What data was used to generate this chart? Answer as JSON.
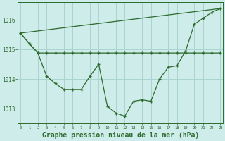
{
  "background_color": "#ceecea",
  "grid_color": "#aad4d0",
  "line_color": "#2d6a2d",
  "marker_color": "#2d6a2d",
  "title": "Graphe pression niveau de la mer (hPa)",
  "title_fontsize": 7,
  "ylim": [
    1012.5,
    1016.6
  ],
  "yticks": [
    1013,
    1014,
    1015,
    1016
  ],
  "xlim": [
    -0.3,
    23.3
  ],
  "xticks": [
    0,
    1,
    2,
    3,
    4,
    5,
    6,
    7,
    8,
    9,
    10,
    11,
    12,
    13,
    14,
    15,
    16,
    17,
    18,
    19,
    20,
    21,
    22,
    23
  ],
  "series1_x": [
    0,
    1,
    2,
    3,
    4,
    5,
    6,
    7,
    8,
    9,
    10,
    11,
    12,
    13,
    14,
    15,
    16,
    17,
    18,
    19,
    20,
    21,
    22,
    23
  ],
  "series1_y": [
    1015.55,
    1015.2,
    1014.88,
    1014.88,
    1014.88,
    1014.88,
    1014.88,
    1014.88,
    1014.88,
    1014.88,
    1014.88,
    1014.88,
    1014.88,
    1014.88,
    1014.88,
    1014.88,
    1014.88,
    1014.88,
    1014.88,
    1014.88,
    1014.88,
    1014.88,
    1014.88,
    1014.88
  ],
  "series2_x": [
    0,
    1,
    2,
    3,
    4,
    5,
    6,
    7,
    8,
    9,
    10,
    11,
    12,
    13,
    14,
    15,
    16,
    17,
    18,
    19,
    20,
    21,
    22,
    23
  ],
  "series2_y": [
    1015.55,
    1015.2,
    1014.88,
    1014.1,
    1013.85,
    1013.65,
    1013.65,
    1013.65,
    1014.1,
    1014.5,
    1013.08,
    1012.85,
    1012.75,
    1013.25,
    1013.3,
    1013.25,
    1014.0,
    1014.4,
    1014.45,
    1014.95,
    1015.85,
    1016.05,
    1016.25,
    1016.38
  ],
  "series3_x": [
    0,
    23
  ],
  "series3_y": [
    1015.55,
    1016.38
  ]
}
